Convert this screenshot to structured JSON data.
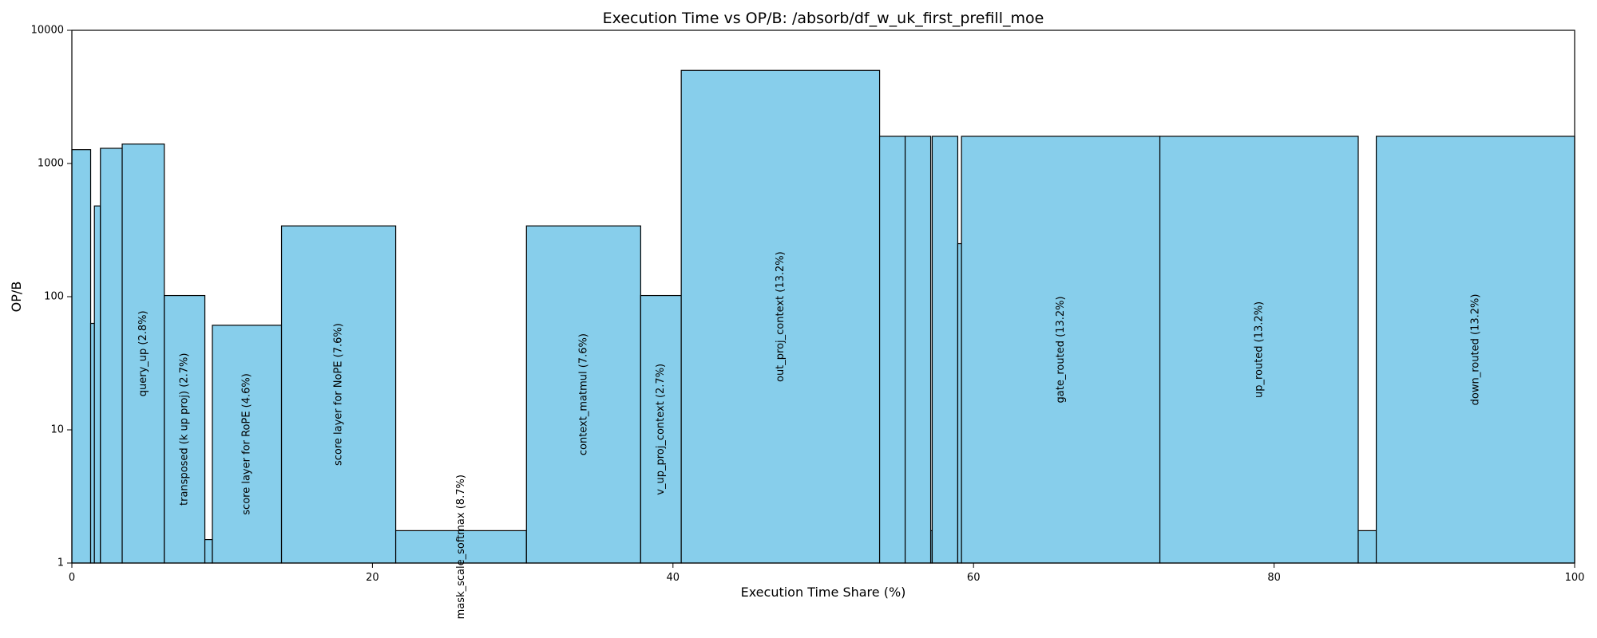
{
  "chart_data": {
    "type": "bar",
    "title": "Execution Time vs OP/B: /absorb/df_w_uk_first_prefill_moe",
    "xlabel": "Execution Time Share (%)",
    "ylabel": "OP/B",
    "xlim": [
      0,
      100
    ],
    "ylim": [
      1,
      10000
    ],
    "yscale": "log",
    "x_ticks": [
      0,
      20,
      40,
      60,
      80,
      100
    ],
    "y_ticks": [
      1,
      10,
      100,
      1000,
      10000
    ],
    "bar_color": "#87CEEB",
    "edge_color": "#000000",
    "grid": false,
    "bars": [
      {
        "start": 0.0,
        "width": 1.25,
        "value": 1270,
        "label": ""
      },
      {
        "start": 1.25,
        "width": 0.25,
        "value": 63,
        "label": ""
      },
      {
        "start": 1.5,
        "width": 0.4,
        "value": 480,
        "label": ""
      },
      {
        "start": 1.9,
        "width": 1.45,
        "value": 1300,
        "label": ""
      },
      {
        "start": 3.35,
        "width": 2.8,
        "value": 1400,
        "label": "query_up (2.8%)"
      },
      {
        "start": 6.15,
        "width": 2.7,
        "value": 102,
        "label": "transposed (k up proj) (2.7%)"
      },
      {
        "start": 8.85,
        "width": 0.5,
        "value": 1.5,
        "label": ""
      },
      {
        "start": 9.35,
        "width": 4.6,
        "value": 61,
        "label": "score layer for RoPE (4.6%)"
      },
      {
        "start": 13.95,
        "width": 7.6,
        "value": 340,
        "label": "score layer for NoPE (7.6%)"
      },
      {
        "start": 21.55,
        "width": 8.7,
        "value": 1.75,
        "label": "mask_scale_softmax (8.7%)"
      },
      {
        "start": 30.25,
        "width": 7.6,
        "value": 340,
        "label": "context_matmul (7.6%)"
      },
      {
        "start": 37.85,
        "width": 2.7,
        "value": 102,
        "label": "v_up_proj_context (2.7%)"
      },
      {
        "start": 40.55,
        "width": 13.2,
        "value": 5000,
        "label": "out_proj_context (13.2%)"
      },
      {
        "start": 53.75,
        "width": 1.7,
        "value": 1600,
        "label": ""
      },
      {
        "start": 55.45,
        "width": 1.7,
        "value": 1600,
        "label": ""
      },
      {
        "start": 57.15,
        "width": 0.1,
        "value": 1.75,
        "label": ""
      },
      {
        "start": 57.25,
        "width": 1.7,
        "value": 1600,
        "label": ""
      },
      {
        "start": 58.95,
        "width": 0.25,
        "value": 250,
        "label": ""
      },
      {
        "start": 59.2,
        "width": 13.2,
        "value": 1600,
        "label": "gate_routed (13.2%)"
      },
      {
        "start": 72.4,
        "width": 13.2,
        "value": 1600,
        "label": "up_routed (13.2%)"
      },
      {
        "start": 85.6,
        "width": 1.2,
        "value": 1.75,
        "label": ""
      },
      {
        "start": 86.8,
        "width": 13.2,
        "value": 1600,
        "label": "down_routed (13.2%)"
      }
    ]
  }
}
